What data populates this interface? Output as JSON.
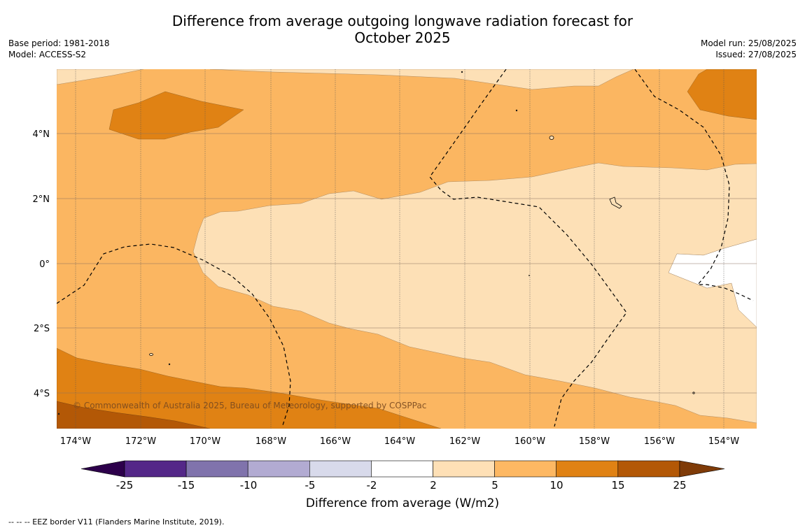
{
  "header": {
    "title_line1": "Difference from average outgoing longwave radiation forecast for",
    "title_line2": "October 2025",
    "base_period": "Base period: 1981-2018",
    "model": "Model: ACCESS-S2",
    "model_run": "Model run: 25/08/2025",
    "issued": "Issued: 27/08/2025"
  },
  "map": {
    "lat_labels": [
      "4°N",
      "2°N",
      "0°",
      "2°S",
      "4°S"
    ],
    "lon_labels": [
      "174°W",
      "172°W",
      "170°W",
      "168°W",
      "166°W",
      "164°W",
      "162°W",
      "160°W",
      "158°W",
      "156°W",
      "154°W"
    ],
    "copyright": "© Commonwealth of Australia 2025, Bureau of Meteorology, supported by COSPPac",
    "colors": {
      "2_5": "#fde0b6",
      "5_10": "#fbb661",
      "10_15": "#e08214",
      "15_25": "#b35806",
      "-2_2": "#ffffff"
    }
  },
  "colorbar": {
    "tick_labels": [
      "-25",
      "-15",
      "-10",
      "-5",
      "-2",
      "2",
      "5",
      "10",
      "15",
      "25"
    ],
    "colors": [
      "#2d004b",
      "#542788",
      "#8073ac",
      "#b2abd2",
      "#d8daeb",
      "#ffffff",
      "#fee0b6",
      "#fdb863",
      "#e08214",
      "#b35806",
      "#7f3b08"
    ],
    "title": "Difference from average (W/m2)"
  },
  "footer": {
    "legend_line": "--  --  -- EEZ border V11 (Flanders Marine Institute, 2019)."
  }
}
